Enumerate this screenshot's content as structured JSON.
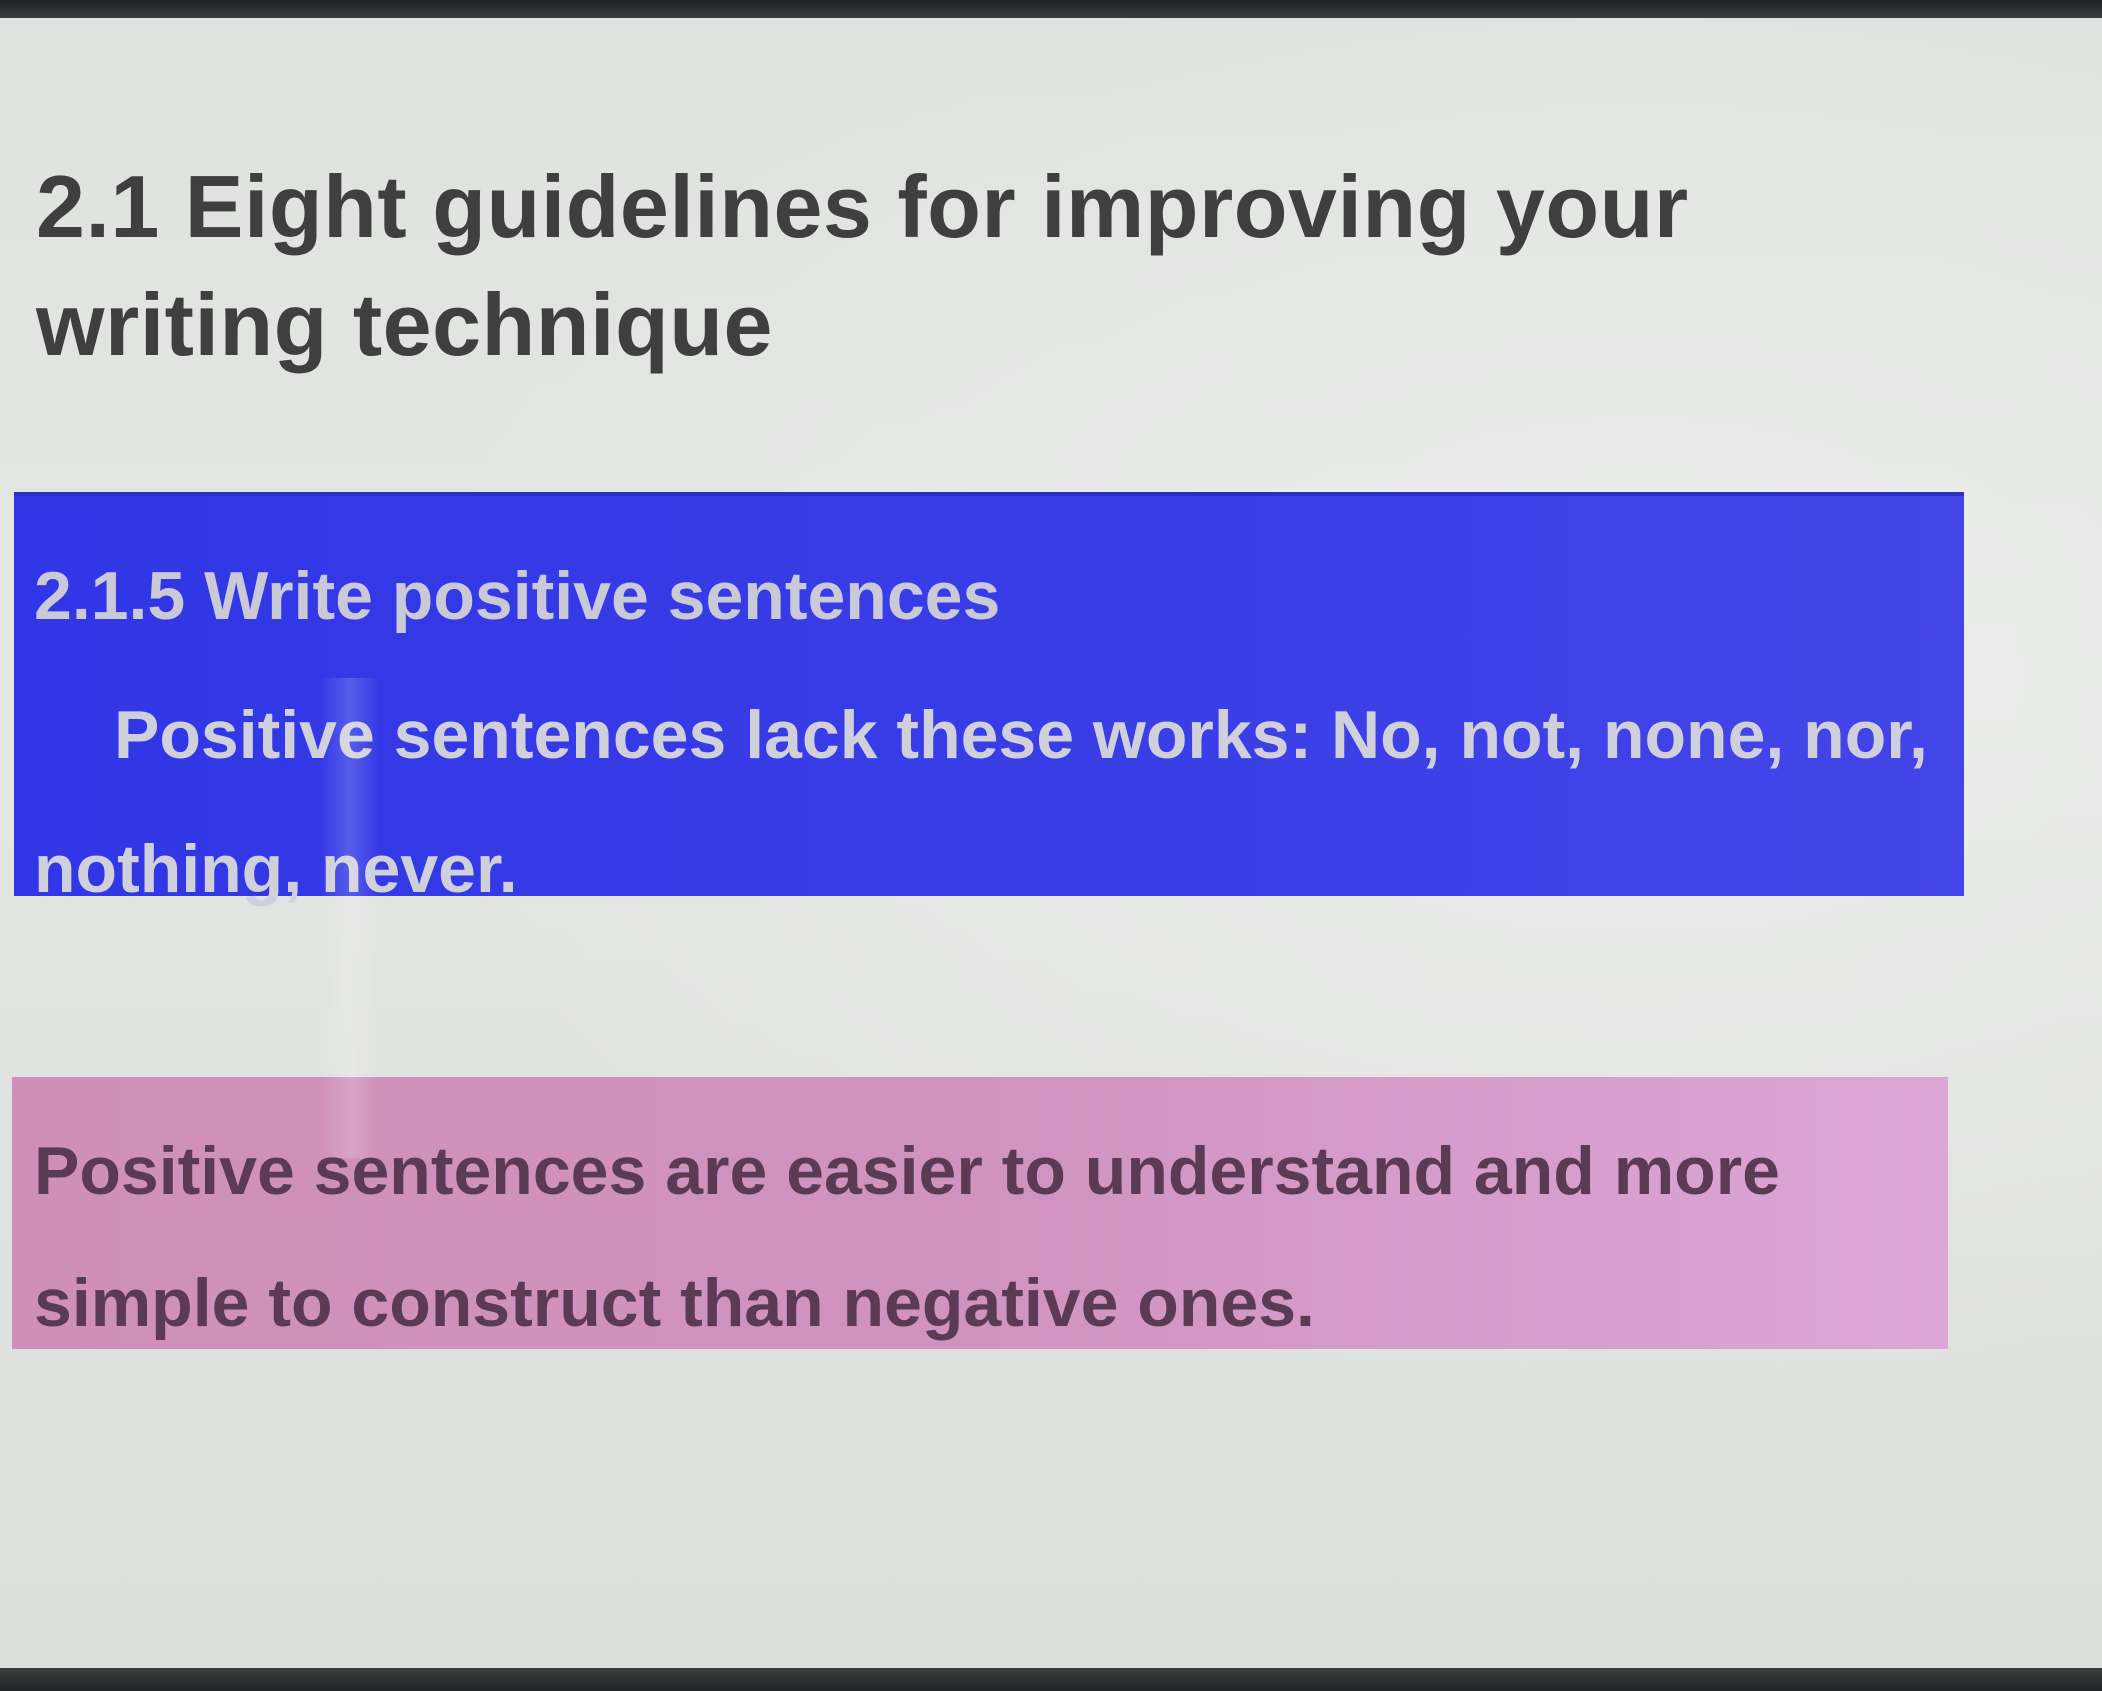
{
  "slide": {
    "title": "2.1 Eight guidelines for improving your writing technique",
    "section": {
      "heading": "2.1.5 Write positive sentences",
      "body": "Positive sentences lack these works: No, not, none, nor, nothing, never."
    },
    "note": {
      "text": "Positive sentences are easier to understand and more simple to construct than negative ones."
    },
    "colors": {
      "slide_background": "#e0e2e0",
      "title_text": "#3f3f3f",
      "blue_box": "#3a3ee6",
      "blue_box_text": "#d0d0dc",
      "pink_box": "#d093c0",
      "pink_box_text": "#5a3a55"
    }
  }
}
